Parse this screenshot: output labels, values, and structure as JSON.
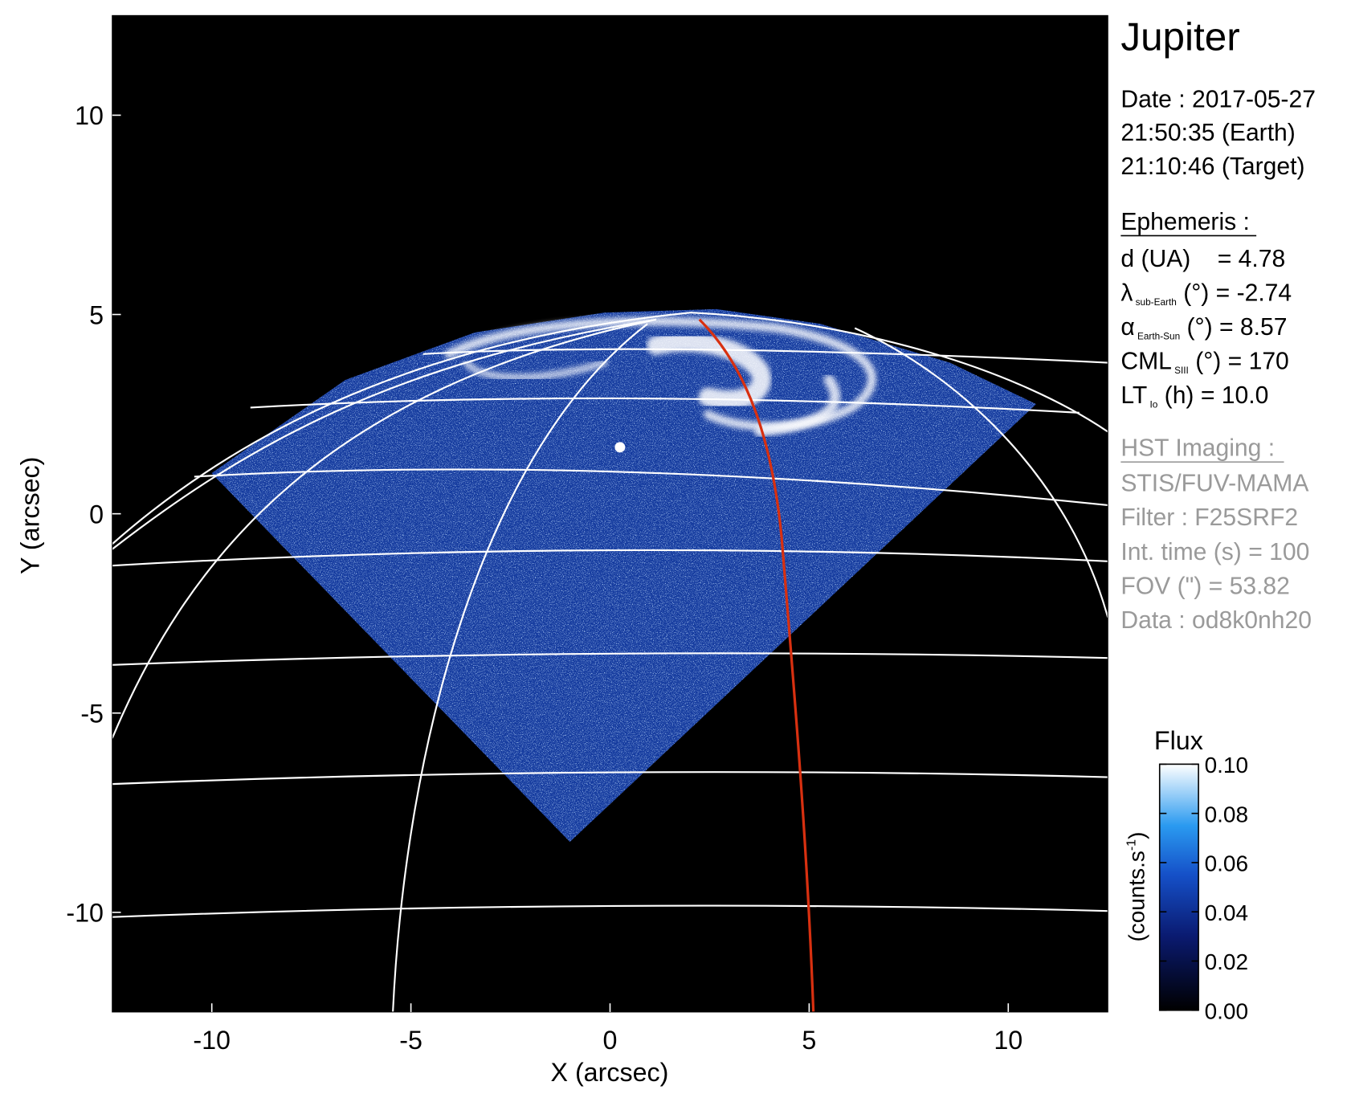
{
  "chart_data": {
    "type": "image",
    "title": "Jupiter",
    "xlabel": "X (arcsec)",
    "ylabel": "Y (arcsec)",
    "xlim": [
      -12.5,
      12.5
    ],
    "ylim": [
      -12.5,
      12.5
    ],
    "xticks": [
      -10,
      -5,
      0,
      5,
      10
    ],
    "yticks": [
      -10,
      -5,
      0,
      5,
      10
    ],
    "colorbar": {
      "title": "Flux",
      "label": [
        "(counts.s",
        "-1",
        ")"
      ],
      "lim": [
        0,
        0.1
      ],
      "ticks": [
        {
          "value": 0,
          "label": "0.00"
        },
        {
          "value": 0.02,
          "label": "0.02"
        },
        {
          "value": 0.04,
          "label": "0.04"
        },
        {
          "value": 0.06,
          "label": "0.06"
        },
        {
          "value": 0.08,
          "label": "0.08"
        },
        {
          "value": 0.1,
          "label": "0.10"
        }
      ]
    },
    "info": {
      "date": [
        "Date : 2017-05-27",
        "21:50:35 (Earth)",
        "21:10:46 (Target)"
      ],
      "ephemeris": {
        "heading": "Ephemeris :",
        "rows": [
          [
            "d (UA)    = 4.78"
          ],
          [
            "λ",
            "sub-Earth",
            " (°) = -2.74"
          ],
          [
            "α",
            "Earth-Sun",
            " (°) = 8.57"
          ],
          [
            "CML",
            "SIII",
            " (°) = 170"
          ],
          [
            "LT",
            "Io",
            " (h) = 10.0"
          ]
        ]
      },
      "imaging": {
        "heading": "HST Imaging :",
        "rows": [
          "STIS/FUV-MAMA",
          "Filter : F25SRF2",
          "Int. time (s) = 100",
          "FOV (\") = 53.82",
          "Data : od8k0nh20"
        ]
      }
    }
  }
}
